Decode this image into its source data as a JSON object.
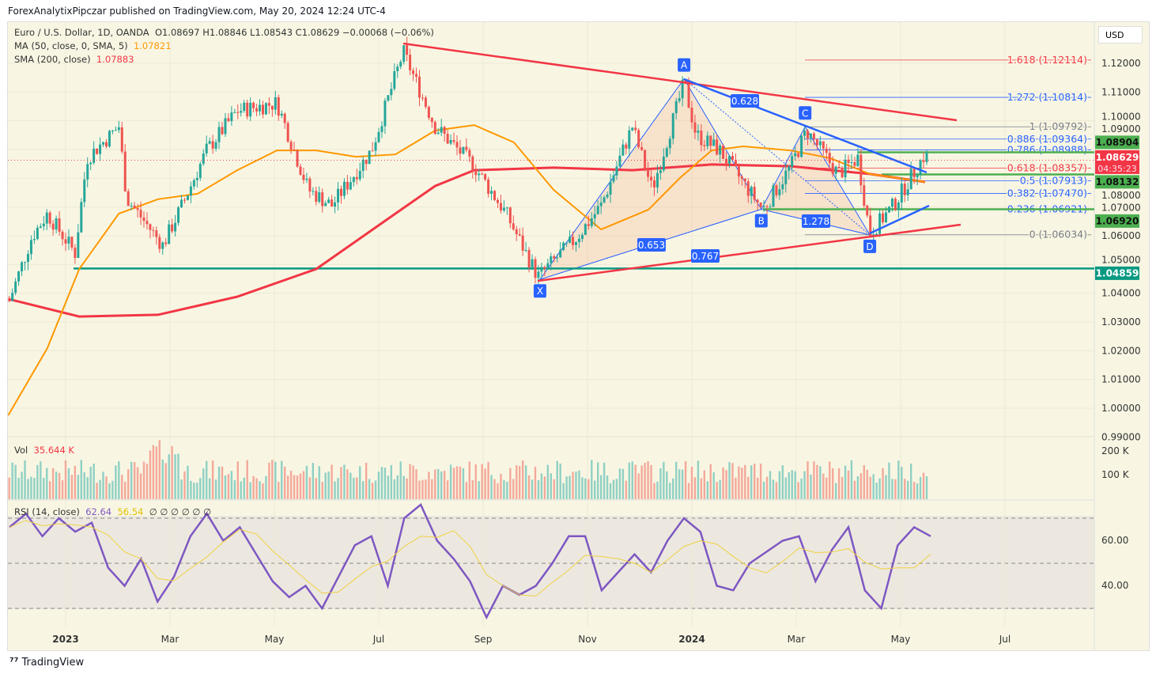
{
  "header": {
    "published": "ForexAnalytixPipczar published on TradingView.com, May 20, 2024 12:24 UTC-4",
    "symbol": "Euro / U.S. Dollar, 1D, OANDA",
    "ohlc": "O1.08697  H1.08846  L1.08543  C1.08629  −0.00068 (−0.06%)",
    "ma_label": "MA (50, close, 0, SMA, 5)",
    "ma_value": "1.07821",
    "sma_label": "SMA (200, close)",
    "sma_value": "1.07883",
    "currency": "USD"
  },
  "footer": {
    "brand": "TradingView"
  },
  "volume": {
    "label": "Vol",
    "value": "35.644 K",
    "ticks": [
      "200 K",
      "100 K"
    ]
  },
  "rsi": {
    "label": "RSI (14, close)",
    "value": "62.64",
    "ma_value": "56.54",
    "extra": "∅  ∅  ∅  ∅  ∅  ∅",
    "ticks": [
      "60.00",
      "40.00"
    ],
    "series": [
      66,
      72,
      62,
      70,
      64,
      68,
      48,
      40,
      52,
      33,
      44,
      62,
      72,
      60,
      66,
      54,
      42,
      35,
      40,
      30,
      44,
      58,
      62,
      40,
      70,
      76,
      60,
      52,
      42,
      26,
      40,
      36,
      40,
      50,
      62,
      62,
      38,
      46,
      54,
      46,
      60,
      70,
      64,
      40,
      38,
      50,
      55,
      60,
      62,
      42,
      56,
      66,
      38,
      30,
      58,
      66,
      62
    ]
  },
  "colors": {
    "up": "#26a69a",
    "down": "#ef5350",
    "ma50": "#ff9800",
    "sma200": "#f23645",
    "rsi": "#7e57c2",
    "pattern": "#2962ff",
    "accent_green": "#4caf50"
  },
  "chart_data": {
    "type": "candlestick-line",
    "ylim": [
      0.99,
      1.125
    ],
    "x_ticks": [
      "2023",
      "Mar",
      "May",
      "Jul",
      "Sep",
      "Nov",
      "2024",
      "Mar",
      "May",
      "Jul"
    ],
    "y_ticks": [
      "1.12000",
      "1.11000",
      "1.10000",
      "1.09000",
      "1.08000",
      "1.07000",
      "1.06000",
      "1.05000",
      "1.04000",
      "1.03000",
      "1.02000",
      "1.01000",
      "1.00000",
      "0.99000"
    ],
    "y_tick_values": [
      1.12,
      1.11,
      1.1,
      1.09,
      1.08,
      1.07,
      1.06,
      1.05,
      1.04,
      1.03,
      1.02,
      1.01,
      1.0,
      0.99
    ],
    "price_path": [
      [
        -1.08,
        1.0374
      ],
      [
        -0.65,
        1.0595
      ],
      [
        -0.35,
        1.0677
      ],
      [
        0.18,
        1.054
      ],
      [
        0.41,
        1.087
      ],
      [
        1.02,
        1.098
      ],
      [
        1.17,
        1.073
      ],
      [
        1.86,
        1.0567
      ],
      [
        2.23,
        1.0705
      ],
      [
        2.7,
        1.0897
      ],
      [
        3.29,
        1.1035
      ],
      [
        4.05,
        1.1062
      ],
      [
        4.65,
        1.076
      ],
      [
        5.1,
        1.0705
      ],
      [
        5.86,
        1.0897
      ],
      [
        6.47,
        1.124
      ],
      [
        7.08,
        1.098
      ],
      [
        7.83,
        1.0842
      ],
      [
        8.44,
        1.0677
      ],
      [
        9.05,
        1.0457
      ],
      [
        9.8,
        1.0595
      ],
      [
        10.26,
        1.0705
      ],
      [
        10.86,
        1.098
      ],
      [
        11.24,
        1.076
      ],
      [
        11.85,
        1.1131
      ],
      [
        12.08,
        1.0952
      ],
      [
        12.53,
        1.0897
      ],
      [
        13.36,
        1.0691
      ],
      [
        13.9,
        1.0842
      ],
      [
        14.2,
        1.0966
      ],
      [
        14.8,
        1.0815
      ],
      [
        15.18,
        1.087
      ],
      [
        15.41,
        1.0608
      ],
      [
        15.86,
        1.0705
      ],
      [
        16.47,
        1.0884
      ],
      [
        16.55,
        1.0863
      ]
    ],
    "sma200": [
      [
        -1.1,
        1.038
      ],
      [
        0.26,
        1.0319
      ],
      [
        1.77,
        1.0325
      ],
      [
        3.29,
        1.0388
      ],
      [
        4.8,
        1.0484
      ],
      [
        6.32,
        1.0677
      ],
      [
        7.08,
        1.0773
      ],
      [
        7.83,
        1.0828
      ],
      [
        9.35,
        1.0837
      ],
      [
        10.86,
        1.0828
      ],
      [
        12.38,
        1.0848
      ],
      [
        13.89,
        1.0842
      ],
      [
        15.41,
        1.0815
      ],
      [
        16.47,
        1.0787
      ]
    ],
    "ma50": [
      [
        -1.1,
        0.9975
      ],
      [
        -0.35,
        1.0209
      ],
      [
        0.26,
        1.0484
      ],
      [
        1.02,
        1.0677
      ],
      [
        1.77,
        1.0727
      ],
      [
        2.53,
        1.0746
      ],
      [
        3.29,
        1.0828
      ],
      [
        4.05,
        1.0897
      ],
      [
        4.8,
        1.0897
      ],
      [
        5.56,
        1.0875
      ],
      [
        6.32,
        1.0883
      ],
      [
        7.08,
        1.0966
      ],
      [
        7.83,
        1.0985
      ],
      [
        8.59,
        1.0925
      ],
      [
        9.35,
        1.076
      ],
      [
        10.26,
        1.0622
      ],
      [
        11.17,
        1.0691
      ],
      [
        11.77,
        1.0801
      ],
      [
        12.38,
        1.0897
      ],
      [
        12.98,
        1.0911
      ],
      [
        13.89,
        1.0897
      ],
      [
        14.65,
        1.087
      ],
      [
        15.41,
        1.0815
      ],
      [
        16.47,
        1.0787
      ]
    ],
    "pattern": {
      "points": [
        {
          "label": "X",
          "t": 9.09,
          "p": 1.0448
        },
        {
          "label": "A",
          "t": 11.85,
          "p": 1.1146
        },
        {
          "label": "B",
          "t": 13.33,
          "p": 1.0692
        },
        {
          "label": "C",
          "t": 14.17,
          "p": 1.0979
        },
        {
          "label": "D",
          "t": 15.41,
          "p": 1.0603
        }
      ],
      "ratios": [
        "0.628",
        "0.653",
        "1.278",
        "0.767"
      ]
    },
    "fib": [
      {
        "label": "1.618 (1.12114)",
        "p": 1.12114,
        "color": "#f23645"
      },
      {
        "label": "1.272 (1.10814)",
        "p": 1.10814,
        "color": "#2962ff"
      },
      {
        "label": "1 (1.09792)",
        "p": 1.09792,
        "color": "#787b86"
      },
      {
        "label": "0.886 (1.09364)",
        "p": 1.09364,
        "color": "#2962ff"
      },
      {
        "label": "0.786 (1.08988)",
        "p": 1.08988,
        "color": "#2962ff"
      },
      {
        "label": "0.618 (1.08357)",
        "p": 1.08357,
        "color": "#f23645"
      },
      {
        "label": "0.5 (1.07913)",
        "p": 1.07913,
        "color": "#2962ff"
      },
      {
        "label": "0.382 (1.07470)",
        "p": 1.0747,
        "color": "#2962ff"
      },
      {
        "label": "0.236 (1.06921)",
        "p": 1.06921,
        "color": "#2962ff"
      },
      {
        "label": "0 (1.06034)",
        "p": 1.06034,
        "color": "#787b86"
      }
    ],
    "price_labels": [
      {
        "text": "1.08904",
        "p": 1.08904,
        "color": "#4caf50"
      },
      {
        "text": "1.08132",
        "p": 1.08132,
        "color": "#4caf50"
      },
      {
        "text": "1.06920",
        "p": 1.0692,
        "color": "#4caf50"
      },
      {
        "text": "1.04859",
        "p": 1.04859,
        "color": "#089981"
      }
    ],
    "last_price": {
      "text": "1.08629",
      "countdown": "04:35:23",
      "p": 1.08629
    }
  }
}
